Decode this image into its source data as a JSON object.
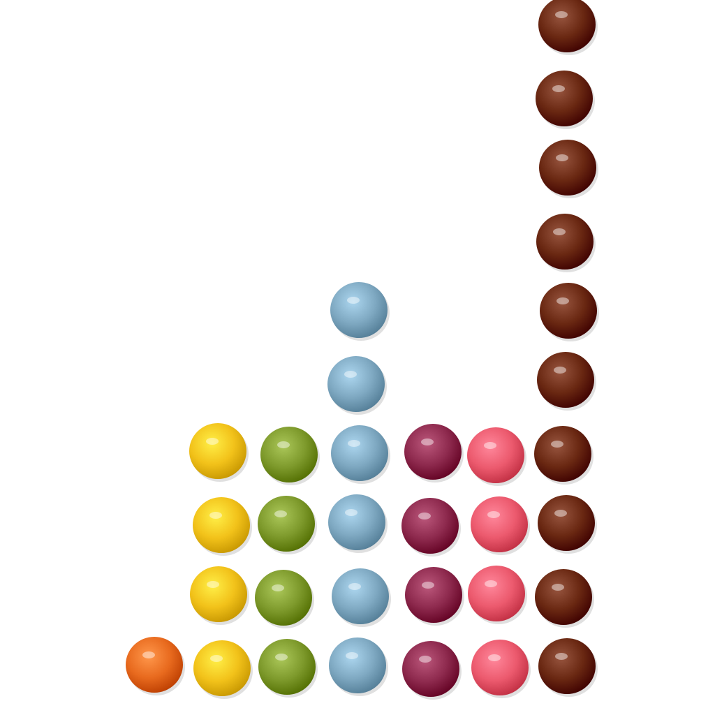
{
  "colors": {
    "background": "#ffffff",
    "orange": "#e86a1e",
    "yellow": "#f2c21a",
    "green": "#7e9a2c",
    "blue": "#7fa9c2",
    "purple": "#8e2a4e",
    "pink": "#ec5a6e",
    "brown": "#6a2812"
  },
  "candy_columns": [
    {
      "color": "orange",
      "count": 1
    },
    {
      "color": "yellow",
      "count": 4
    },
    {
      "color": "green",
      "count": 4
    },
    {
      "color": "blue",
      "count": 6
    },
    {
      "color": "purple",
      "count": 4
    },
    {
      "color": "pink",
      "count": 4
    },
    {
      "color": "brown",
      "count": 10
    }
  ]
}
